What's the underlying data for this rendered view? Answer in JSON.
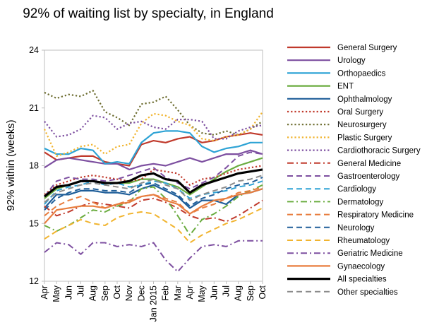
{
  "chart_data": {
    "type": "line",
    "title": "92% of waiting list by specialty, in England",
    "ylabel": "92% within (weeks)",
    "xlabel": "",
    "ylim": [
      12,
      24
    ],
    "yticks": [
      "12",
      "15",
      "18",
      "21",
      "24"
    ],
    "grid": false,
    "legend_position": "right",
    "x": [
      "Apr",
      "May",
      "Jun",
      "Jul",
      "Aug",
      "Sep",
      "Oct",
      "Nov",
      "Dec",
      "Jan 2015",
      "Feb",
      "Mar",
      "Apr",
      "May",
      "Jun",
      "Jul",
      "Aug",
      "Sep",
      "Oct"
    ],
    "series": [
      {
        "name": "General Surgery",
        "color": "#c0392b",
        "dash": "solid",
        "width": 2.2,
        "values": [
          18.7,
          18.3,
          18.4,
          18.5,
          18.5,
          18.2,
          18.1,
          18.0,
          19.1,
          19.3,
          19.2,
          19.4,
          19.5,
          19.2,
          19.3,
          19.5,
          19.6,
          19.7,
          19.6
        ]
      },
      {
        "name": "Urology",
        "color": "#7d4fa0",
        "dash": "solid",
        "width": 2.2,
        "values": [
          17.9,
          18.3,
          18.4,
          18.3,
          18.2,
          18.1,
          18.1,
          17.8,
          18.0,
          18.1,
          18.0,
          18.2,
          18.4,
          18.2,
          18.4,
          18.6,
          18.6,
          18.8,
          18.6
        ]
      },
      {
        "name": "Orthopaedics",
        "color": "#2ea3d5",
        "dash": "solid",
        "width": 2.2,
        "values": [
          18.9,
          18.6,
          18.6,
          18.9,
          18.8,
          18.1,
          18.2,
          18.1,
          19.2,
          19.7,
          19.8,
          19.8,
          19.7,
          19.0,
          18.7,
          18.9,
          19.0,
          19.2,
          19.2
        ]
      },
      {
        "name": "ENT",
        "color": "#6aac3f",
        "dash": "solid",
        "width": 2.2,
        "values": [
          16.3,
          16.8,
          17.0,
          17.2,
          17.2,
          17.1,
          17.1,
          17.1,
          17.3,
          17.3,
          17.1,
          16.9,
          16.5,
          16.9,
          17.3,
          17.7,
          18.0,
          18.2,
          18.4
        ]
      },
      {
        "name": "Ophthalmology",
        "color": "#1f5e99",
        "dash": "solid",
        "width": 2.2,
        "values": [
          15.8,
          16.5,
          16.5,
          16.7,
          16.7,
          16.6,
          16.6,
          16.5,
          16.8,
          17.0,
          16.7,
          16.4,
          15.8,
          16.2,
          16.2,
          16.0,
          16.5,
          16.6,
          16.8
        ]
      },
      {
        "name": "Oral Surgery",
        "color": "#c0392b",
        "dash": "dot",
        "width": 2.2,
        "values": [
          16.5,
          17.0,
          17.2,
          17.4,
          17.5,
          17.4,
          17.3,
          17.2,
          17.3,
          17.8,
          17.7,
          17.6,
          17.0,
          17.3,
          17.4,
          17.6,
          17.8,
          17.9,
          18.0
        ]
      },
      {
        "name": "Neurosurgery",
        "color": "#6b6b2e",
        "dash": "dot",
        "width": 2.2,
        "values": [
          21.8,
          21.5,
          21.7,
          21.6,
          21.9,
          20.8,
          20.5,
          20.1,
          21.2,
          21.3,
          21.6,
          20.9,
          20.1,
          19.7,
          19.6,
          19.8,
          19.6,
          19.9,
          20.3
        ]
      },
      {
        "name": "Plastic Surgery",
        "color": "#f1b42f",
        "dash": "dot",
        "width": 2.2,
        "values": [
          19.9,
          18.5,
          18.7,
          19.0,
          19.1,
          18.6,
          19.0,
          19.1,
          20.2,
          20.7,
          20.6,
          20.3,
          20.1,
          19.4,
          19.3,
          19.5,
          19.6,
          19.9,
          20.8
        ]
      },
      {
        "name": "Cardiothoracic Surgery",
        "color": "#7d4fa0",
        "dash": "dot",
        "width": 2.2,
        "values": [
          20.3,
          19.5,
          19.6,
          19.9,
          20.6,
          20.5,
          19.9,
          20.2,
          20.3,
          20.0,
          19.9,
          20.4,
          20.4,
          20.3,
          19.4,
          19.4,
          19.8,
          20.0,
          20.1
        ]
      },
      {
        "name": "General Medicine",
        "color": "#c0392b",
        "dash": "dashdot",
        "width": 2.0,
        "values": [
          15.9,
          15.4,
          15.6,
          15.9,
          16.1,
          16.0,
          15.9,
          15.8,
          16.2,
          16.3,
          16.1,
          15.8,
          15.4,
          15.2,
          15.3,
          15.1,
          15.4,
          15.8,
          16.2
        ]
      },
      {
        "name": "Gastroenterology",
        "color": "#7d4fa0",
        "dash": "dash",
        "width": 2.0,
        "values": [
          16.4,
          17.2,
          17.4,
          17.3,
          17.3,
          17.2,
          17.3,
          17.5,
          17.7,
          17.9,
          17.4,
          17.1,
          16.8,
          17.1,
          17.4,
          17.9,
          18.5,
          18.7,
          18.6
        ]
      },
      {
        "name": "Cardiology",
        "color": "#2ea3d5",
        "dash": "dash",
        "width": 2.0,
        "values": [
          16.0,
          16.7,
          16.9,
          17.0,
          17.2,
          17.0,
          17.1,
          16.9,
          17.0,
          17.2,
          17.1,
          16.8,
          16.3,
          16.5,
          16.6,
          16.7,
          16.9,
          17.0,
          17.2
        ]
      },
      {
        "name": "Dermatology",
        "color": "#6aac3f",
        "dash": "dashdot",
        "width": 2.0,
        "values": [
          14.9,
          14.6,
          14.9,
          15.3,
          15.7,
          15.6,
          15.9,
          16.1,
          16.8,
          16.9,
          16.3,
          15.4,
          14.4,
          15.2,
          15.5,
          15.9,
          16.4,
          16.7,
          17.0
        ]
      },
      {
        "name": "Respiratory Medicine",
        "color": "#e87d3e",
        "dash": "dash",
        "width": 2.0,
        "values": [
          15.4,
          15.9,
          16.2,
          16.4,
          16.1,
          15.8,
          16.0,
          16.2,
          16.4,
          16.5,
          16.3,
          16.1,
          15.5,
          15.8,
          16.0,
          16.3,
          16.6,
          16.7,
          16.9
        ]
      },
      {
        "name": "Neurology",
        "color": "#1f5e99",
        "dash": "dash",
        "width": 2.0,
        "values": [
          15.7,
          16.3,
          16.6,
          16.8,
          16.8,
          16.7,
          16.7,
          16.6,
          17.0,
          17.1,
          16.8,
          16.5,
          15.9,
          16.3,
          16.5,
          16.8,
          17.0,
          17.1,
          17.4
        ]
      },
      {
        "name": "Rheumatology",
        "color": "#f1b42f",
        "dash": "dash",
        "width": 2.0,
        "values": [
          14.2,
          14.6,
          14.9,
          15.2,
          15.0,
          14.9,
          15.3,
          15.5,
          15.6,
          15.5,
          15.1,
          14.7,
          14.0,
          14.4,
          14.7,
          15.0,
          15.2,
          15.5,
          15.8
        ]
      },
      {
        "name": "Geriatric Medicine",
        "color": "#7d4fa0",
        "dash": "dashdot",
        "width": 2.0,
        "values": [
          13.5,
          14.0,
          13.9,
          13.4,
          14.0,
          14.0,
          13.8,
          13.9,
          13.8,
          14.0,
          13.1,
          12.5,
          13.2,
          13.8,
          13.9,
          13.8,
          14.1,
          14.1,
          14.1
        ]
      },
      {
        "name": "Gynaecology",
        "color": "#e87d3e",
        "dash": "solid",
        "width": 2.2,
        "values": [
          15.0,
          15.7,
          15.8,
          15.9,
          15.9,
          15.8,
          16.0,
          16.1,
          16.4,
          16.5,
          16.2,
          16.0,
          15.5,
          15.9,
          16.2,
          16.3,
          16.5,
          16.6,
          16.8
        ]
      },
      {
        "name": "All specialties",
        "color": "#000000",
        "dash": "solid",
        "width": 3.2,
        "values": [
          16.4,
          16.9,
          17.0,
          17.2,
          17.2,
          17.1,
          17.1,
          17.2,
          17.5,
          17.6,
          17.3,
          17.2,
          16.6,
          17.0,
          17.2,
          17.4,
          17.6,
          17.7,
          17.8
        ]
      },
      {
        "name": "Other specialties",
        "color": "#8c8c8c",
        "dash": "dash",
        "width": 2.0,
        "values": [
          16.1,
          16.6,
          16.8,
          17.0,
          17.1,
          17.0,
          16.9,
          16.8,
          17.1,
          17.3,
          17.0,
          16.8,
          16.2,
          16.5,
          16.7,
          16.9,
          17.2,
          17.3,
          17.5
        ]
      }
    ]
  }
}
